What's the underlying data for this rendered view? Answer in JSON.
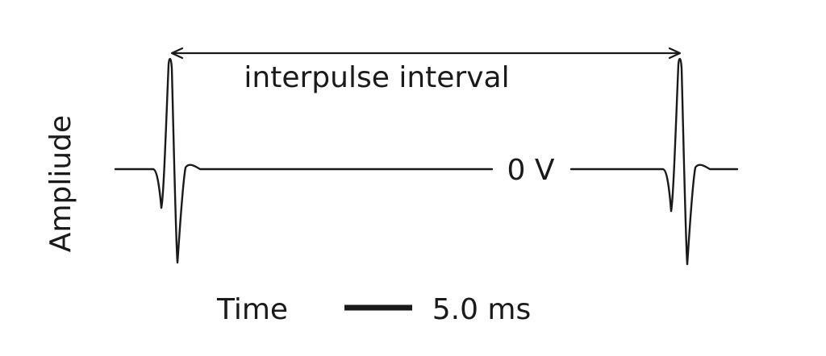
{
  "diagram": {
    "interval_label": "interpulse interval",
    "zero_label": "0 V",
    "y_axis_label": "Ampliude",
    "x_axis_label": "Time",
    "scale_bar_label": "5.0 ms"
  },
  "colors": {
    "stroke": "#1a1a1a",
    "background": "#ffffff"
  }
}
